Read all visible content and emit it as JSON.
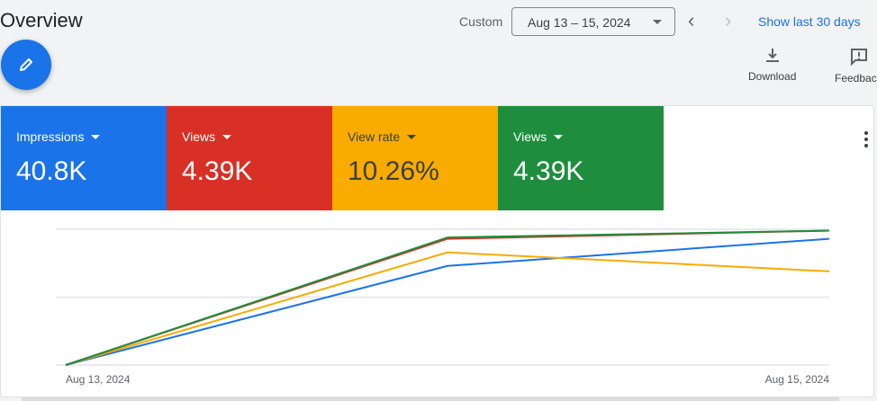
{
  "header": {
    "title": "Overview",
    "range_label": "Custom",
    "date_range": "Aug 13 – 15, 2024",
    "show_last": "Show last 30 days"
  },
  "toolbar": {
    "download": "Download",
    "feedback": "Feedbac"
  },
  "tiles": [
    {
      "label": "Impressions",
      "value": "40.8K",
      "color": "#1a73e8"
    },
    {
      "label": "Views",
      "value": "4.39K",
      "color": "#d93025"
    },
    {
      "label": "View rate",
      "value": "10.26%",
      "color": "#f9ab00"
    },
    {
      "label": "Views",
      "value": "4.39K",
      "color": "#1e8e3e"
    }
  ],
  "chart_data": {
    "type": "line",
    "x": [
      "Aug 13, 2024",
      "Aug 14, 2024",
      "Aug 15, 2024"
    ],
    "x_tick_labels": [
      "Aug 13, 2024",
      "Aug 15, 2024"
    ],
    "ylim": [
      0,
      100
    ],
    "grid": true,
    "note": "relative scale, no y tick labels shown",
    "series": [
      {
        "name": "Impressions",
        "color": "#1a73e8",
        "values": [
          0,
          73,
          93
        ]
      },
      {
        "name": "View rate",
        "color": "#f9ab00",
        "values": [
          0,
          83,
          69
        ]
      },
      {
        "name": "Views",
        "color": "#d93025",
        "values": [
          0,
          93,
          99
        ]
      },
      {
        "name": "Views",
        "color": "#1e8e3e",
        "values": [
          0,
          94,
          99
        ]
      }
    ]
  }
}
